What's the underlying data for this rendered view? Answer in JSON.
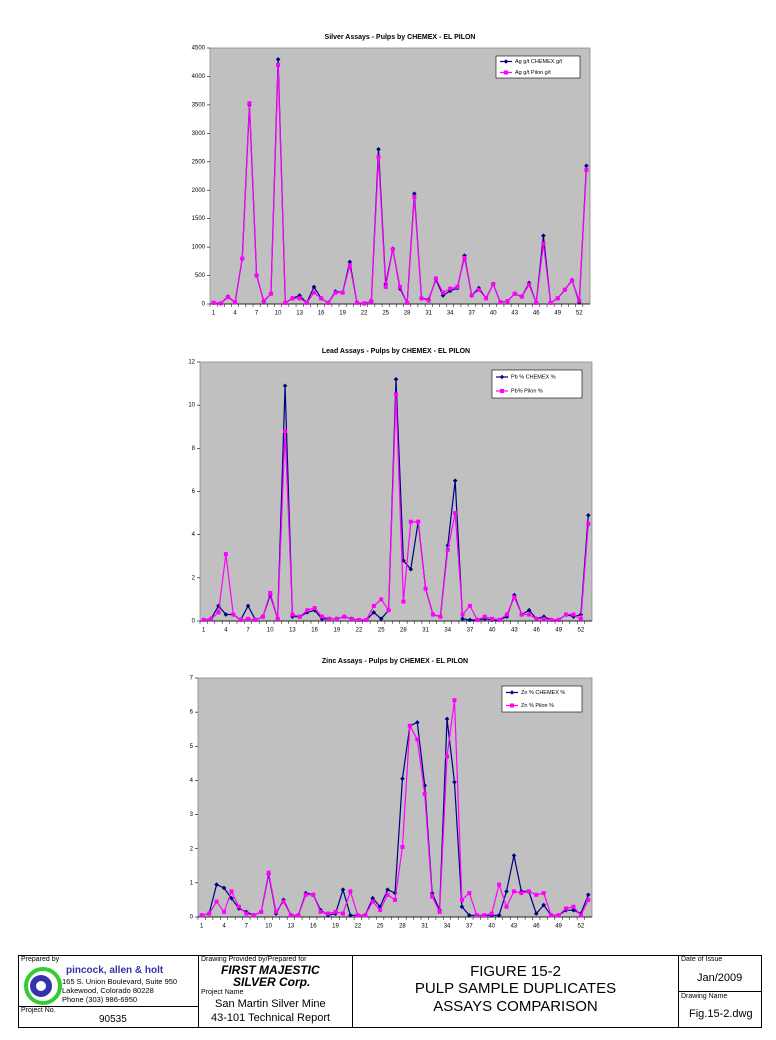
{
  "chart_data": [
    {
      "type": "line",
      "title": "Silver Assays - Pulps by CHEMEX - EL PILON",
      "categories": [
        "1",
        null,
        null,
        "4",
        null,
        null,
        "7",
        null,
        null,
        "10",
        null,
        null,
        "13",
        null,
        null,
        "16",
        null,
        null,
        "19",
        null,
        null,
        "22",
        null,
        null,
        "25",
        null,
        null,
        "28",
        null,
        null,
        "31",
        null,
        null,
        "34",
        null,
        null,
        "37",
        null,
        null,
        "40",
        null,
        null,
        "43",
        null,
        null,
        "46",
        null,
        null,
        "49",
        null,
        null,
        "52",
        null
      ],
      "series": [
        {
          "name": "Ag g/t CHEMEX g/t",
          "color": "#000080",
          "marker": "diamond",
          "values": [
            20,
            10,
            130,
            30,
            800,
            3500,
            500,
            50,
            180,
            4300,
            20,
            100,
            150,
            20,
            300,
            100,
            20,
            220,
            200,
            740,
            20,
            10,
            50,
            2720,
            350,
            970,
            270,
            20,
            1940,
            100,
            80,
            430,
            150,
            230,
            280,
            850,
            150,
            280,
            100,
            350,
            30,
            50,
            180,
            130,
            370,
            20,
            1200,
            20,
            100,
            250,
            420,
            30,
            2430
          ]
        },
        {
          "name": "Ag g/t Pilon g/t",
          "color": "#ff00ff",
          "marker": "square",
          "values": [
            20,
            10,
            120,
            30,
            800,
            3530,
            500,
            50,
            180,
            4200,
            20,
            100,
            100,
            20,
            200,
            100,
            20,
            200,
            200,
            680,
            20,
            10,
            50,
            2580,
            300,
            960,
            300,
            20,
            1880,
            100,
            60,
            450,
            200,
            270,
            300,
            810,
            150,
            250,
            100,
            350,
            30,
            50,
            180,
            130,
            340,
            20,
            1060,
            20,
            100,
            250,
            410,
            60,
            2360
          ]
        }
      ],
      "ylim": [
        0,
        4500
      ],
      "yticks": [
        0,
        500,
        1000,
        1500,
        2000,
        2500,
        3000,
        3500,
        4000,
        4500
      ],
      "legend": "upper right",
      "plot_background": "#c0c0c0"
    },
    {
      "type": "line",
      "title": "Lead Assays - Pulps by CHEMEX - EL PILON",
      "categories": [
        "1",
        null,
        null,
        "4",
        null,
        null,
        "7",
        null,
        null,
        "10",
        null,
        null,
        "13",
        null,
        null,
        "16",
        null,
        null,
        "19",
        null,
        null,
        "22",
        null,
        null,
        "25",
        null,
        null,
        "28",
        null,
        null,
        "31",
        null,
        null,
        "34",
        null,
        null,
        "37",
        null,
        null,
        "40",
        null,
        null,
        "43",
        null,
        null,
        "46",
        null,
        null,
        "49",
        null,
        null,
        "52",
        null
      ],
      "series": [
        {
          "name": "Pb % CHEMEX %",
          "color": "#000080",
          "marker": "diamond",
          "values": [
            0.05,
            0.1,
            0.7,
            0.3,
            0.3,
            0.05,
            0.7,
            0.05,
            0.2,
            1.2,
            0.1,
            10.9,
            0.2,
            0.2,
            0.4,
            0.5,
            0.1,
            0.1,
            0.1,
            0.2,
            0.1,
            0.05,
            0.05,
            0.4,
            0.1,
            0.5,
            11.2,
            2.8,
            2.4,
            4.6,
            1.5,
            0.3,
            0.2,
            3.5,
            6.5,
            0.1,
            0.05,
            0.05,
            0.1,
            0.05,
            0.05,
            0.2,
            1.2,
            0.3,
            0.5,
            0.1,
            0.2,
            0.05,
            0.05,
            0.3,
            0.2,
            0.3,
            4.9
          ]
        },
        {
          "name": "Pb% Pilon %",
          "color": "#ff00ff",
          "marker": "square",
          "values": [
            0.05,
            0.1,
            0.4,
            3.1,
            0.3,
            0.05,
            0.1,
            0.05,
            0.2,
            1.3,
            0.1,
            8.8,
            0.3,
            0.2,
            0.5,
            0.6,
            0.2,
            0.1,
            0.1,
            0.2,
            0.1,
            0.05,
            0.05,
            0.7,
            1.0,
            0.5,
            10.5,
            0.9,
            4.6,
            4.6,
            1.5,
            0.3,
            0.2,
            3.3,
            5.0,
            0.3,
            0.7,
            0.05,
            0.2,
            0.1,
            0.05,
            0.3,
            1.1,
            0.3,
            0.3,
            0.1,
            0.1,
            0.05,
            0.05,
            0.3,
            0.3,
            0.1,
            4.5
          ]
        }
      ],
      "ylim": [
        0,
        12
      ],
      "yticks": [
        0,
        2,
        4,
        6,
        8,
        10,
        12
      ],
      "legend": "upper right",
      "plot_background": "#c0c0c0"
    },
    {
      "type": "line",
      "title": "Zinc Assays - Pulps by CHEMEX - EL PILON",
      "categories": [
        "1",
        null,
        null,
        "4",
        null,
        null,
        "7",
        null,
        null,
        "10",
        null,
        null,
        "13",
        null,
        null,
        "16",
        null,
        null,
        "19",
        null,
        null,
        "22",
        null,
        null,
        "25",
        null,
        null,
        "28",
        null,
        null,
        "31",
        null,
        null,
        "34",
        null,
        null,
        "37",
        null,
        null,
        "40",
        null,
        null,
        "43",
        null,
        null,
        "46",
        null,
        null,
        "49",
        null,
        null,
        "52",
        null
      ],
      "series": [
        {
          "name": "Zn % CHEMEX %",
          "color": "#000080",
          "marker": "diamond",
          "values": [
            0.05,
            0.1,
            0.95,
            0.85,
            0.55,
            0.25,
            0.15,
            0.05,
            0.15,
            1.25,
            0.1,
            0.5,
            0.05,
            0.05,
            0.7,
            0.65,
            0.2,
            0.05,
            0.1,
            0.8,
            0.05,
            0.05,
            0.05,
            0.55,
            0.3,
            0.8,
            0.7,
            4.05,
            5.6,
            5.7,
            3.85,
            0.7,
            0.2,
            5.8,
            3.95,
            0.3,
            0.05,
            0.05,
            0.05,
            0.05,
            0.05,
            0.75,
            1.8,
            0.75,
            0.75,
            0.1,
            0.35,
            0.05,
            0.05,
            0.2,
            0.2,
            0.1,
            0.65
          ]
        },
        {
          "name": "Zn % Pilon %",
          "color": "#ff00ff",
          "marker": "square",
          "values": [
            0.05,
            0.1,
            0.45,
            0.15,
            0.75,
            0.3,
            0.1,
            0.05,
            0.15,
            1.3,
            0.15,
            0.45,
            0.05,
            0.05,
            0.65,
            0.65,
            0.15,
            0.1,
            0.15,
            0.1,
            0.75,
            0.05,
            0.05,
            0.45,
            0.2,
            0.65,
            0.5,
            2.05,
            5.6,
            5.2,
            3.6,
            0.6,
            0.15,
            4.7,
            6.35,
            0.5,
            0.7,
            0.05,
            0.05,
            0.1,
            0.95,
            0.3,
            0.75,
            0.7,
            0.75,
            0.65,
            0.7,
            0.05,
            0.05,
            0.25,
            0.3,
            0.05,
            0.5
          ]
        }
      ],
      "ylim": [
        0,
        7
      ],
      "yticks": [
        0,
        1,
        2,
        3,
        4,
        5,
        6,
        7
      ],
      "legend": "upper right",
      "plot_background": "#c0c0c0"
    }
  ],
  "title_block": {
    "prepared_by_label": "Prepared by",
    "company": "pincock, allen & holt",
    "address_1": "165 S. Union Boulevard, Suite 950",
    "address_2": "Lakewood, Colorado 80228",
    "phone": "Phone (303) 986-6950",
    "project_no_label": "Project No.",
    "project_no": "90535",
    "provided_by_label": "Drawing Provided by/Prepared for",
    "client_1": "FIRST MAJESTIC",
    "client_2": "SILVER Corp.",
    "project_name_label": "Project Name",
    "project_name_1": "San Martin Silver Mine",
    "project_name_2": "43-101 Technical Report",
    "figure": "FIGURE 15-2",
    "figure_title_1": "PULP SAMPLE DUPLICATES",
    "figure_title_2": "ASSAYS COMPARISON",
    "date_label": "Date of Issue",
    "date": "Jan/2009",
    "drawing_name_label": "Drawing Name",
    "drawing_name": "Fig.15-2.dwg"
  }
}
